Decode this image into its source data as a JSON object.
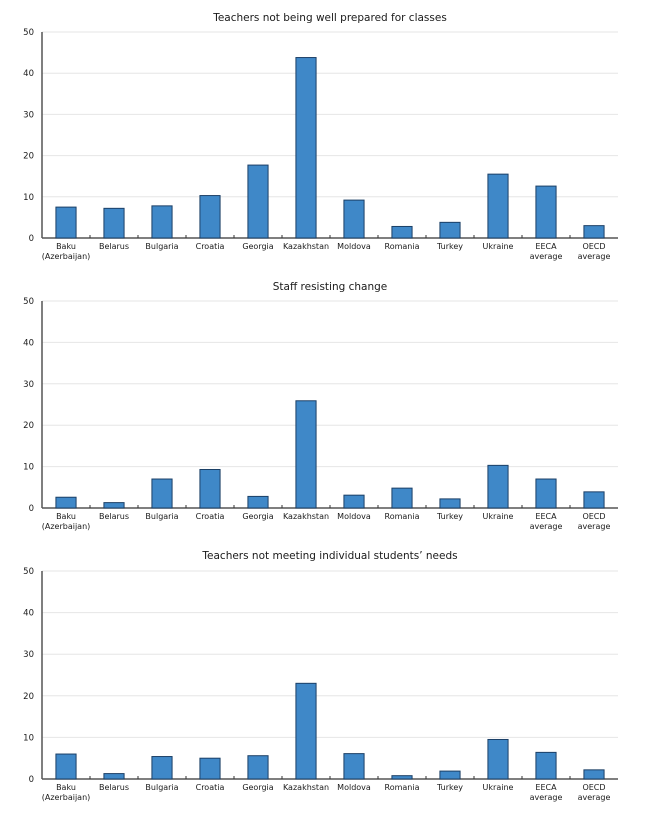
{
  "chart_data": [
    {
      "type": "bar",
      "title": "Teachers not being well prepared for classes",
      "categories": [
        [
          "Baku",
          "(Azerbaijan)"
        ],
        [
          "Belarus"
        ],
        [
          "Bulgaria"
        ],
        [
          "Croatia"
        ],
        [
          "Georgia"
        ],
        [
          "Kazakhstan"
        ],
        [
          "Moldova"
        ],
        [
          "Romania"
        ],
        [
          "Turkey"
        ],
        [
          "Ukraine"
        ],
        [
          "EECA",
          "average"
        ],
        [
          "OECD",
          "average"
        ]
      ],
      "values": [
        7.5,
        7.2,
        7.8,
        10.3,
        17.7,
        43.8,
        9.2,
        2.8,
        3.8,
        15.5,
        12.6,
        3.0
      ],
      "ylim": [
        0,
        50
      ],
      "yticks": [
        0,
        10,
        20,
        30,
        40,
        50
      ],
      "xlabel": "",
      "ylabel": "",
      "grid": true,
      "color": "#3f88c8"
    },
    {
      "type": "bar",
      "title": "Staff resisting change",
      "categories": [
        [
          "Baku",
          "(Azerbaijan)"
        ],
        [
          "Belarus"
        ],
        [
          "Bulgaria"
        ],
        [
          "Croatia"
        ],
        [
          "Georgia"
        ],
        [
          "Kazakhstan"
        ],
        [
          "Moldova"
        ],
        [
          "Romania"
        ],
        [
          "Turkey"
        ],
        [
          "Ukraine"
        ],
        [
          "EECA",
          "average"
        ],
        [
          "OECD",
          "average"
        ]
      ],
      "values": [
        2.6,
        1.3,
        7.0,
        9.3,
        2.8,
        25.9,
        3.1,
        4.8,
        2.2,
        10.3,
        7.0,
        3.9
      ],
      "ylim": [
        0,
        50
      ],
      "yticks": [
        0,
        10,
        20,
        30,
        40,
        50
      ],
      "xlabel": "",
      "ylabel": "",
      "grid": true,
      "color": "#3f88c8"
    },
    {
      "type": "bar",
      "title": "Teachers not meeting individual students’ needs",
      "categories": [
        [
          "Baku",
          "(Azerbaijan)"
        ],
        [
          "Belarus"
        ],
        [
          "Bulgaria"
        ],
        [
          "Croatia"
        ],
        [
          "Georgia"
        ],
        [
          "Kazakhstan"
        ],
        [
          "Moldova"
        ],
        [
          "Romania"
        ],
        [
          "Turkey"
        ],
        [
          "Ukraine"
        ],
        [
          "EECA",
          "average"
        ],
        [
          "OECD",
          "average"
        ]
      ],
      "values": [
        6.0,
        1.3,
        5.4,
        5.0,
        5.6,
        23.0,
        6.1,
        0.8,
        1.9,
        9.5,
        6.4,
        2.2
      ],
      "ylim": [
        0,
        50
      ],
      "yticks": [
        0,
        10,
        20,
        30,
        40,
        50
      ],
      "xlabel": "",
      "ylabel": "",
      "grid": true,
      "color": "#3f88c8"
    }
  ]
}
